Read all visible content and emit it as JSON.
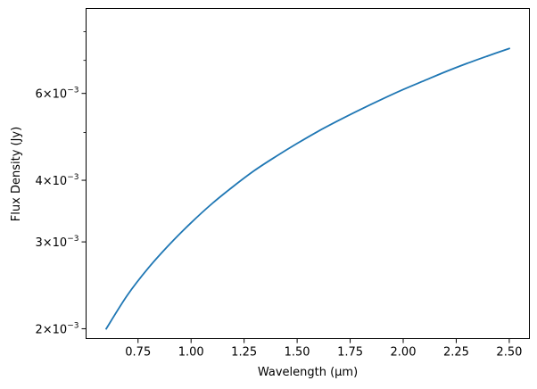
{
  "chart_data": {
    "type": "line",
    "title": "",
    "xlabel": "Wavelength (μm)",
    "ylabel": "Flux Density (Jy)",
    "y_scale": "log",
    "xlim": [
      0.505,
      2.595
    ],
    "ylim": [
      0.00191,
      0.00892
    ],
    "grid": false,
    "legend": "none",
    "x_ticks": [
      {
        "value": 0.75,
        "label": "0.75"
      },
      {
        "value": 1.0,
        "label": "1.00"
      },
      {
        "value": 1.25,
        "label": "1.25"
      },
      {
        "value": 1.5,
        "label": "1.50"
      },
      {
        "value": 1.75,
        "label": "1.75"
      },
      {
        "value": 2.0,
        "label": "2.00"
      },
      {
        "value": 2.25,
        "label": "2.25"
      },
      {
        "value": 2.5,
        "label": "2.50"
      }
    ],
    "y_ticks_major": [
      {
        "value": 0.002,
        "mantissa": "2",
        "base": "10",
        "exponent": "−3"
      },
      {
        "value": 0.003,
        "mantissa": "3",
        "base": "10",
        "exponent": "−3"
      },
      {
        "value": 0.004,
        "mantissa": "4",
        "base": "10",
        "exponent": "−3"
      },
      {
        "value": 0.006,
        "mantissa": "6",
        "base": "10",
        "exponent": "−3"
      }
    ],
    "y_ticks_minor": [
      0.005,
      0.007,
      0.008
    ],
    "series": [
      {
        "color": "#1f77b4",
        "x": [
          0.6,
          0.7,
          0.8,
          0.9,
          1.0,
          1.1,
          1.2,
          1.3,
          1.4,
          1.5,
          1.6,
          1.7,
          1.8,
          1.9,
          2.0,
          2.1,
          2.2,
          2.3,
          2.4,
          2.5
        ],
        "y": [
          0.002,
          0.00234,
          0.00266,
          0.00297,
          0.00328,
          0.00359,
          0.00389,
          0.00419,
          0.00447,
          0.00475,
          0.00503,
          0.0053,
          0.00557,
          0.00584,
          0.00611,
          0.00637,
          0.00664,
          0.0069,
          0.00715,
          0.0074
        ]
      }
    ]
  }
}
